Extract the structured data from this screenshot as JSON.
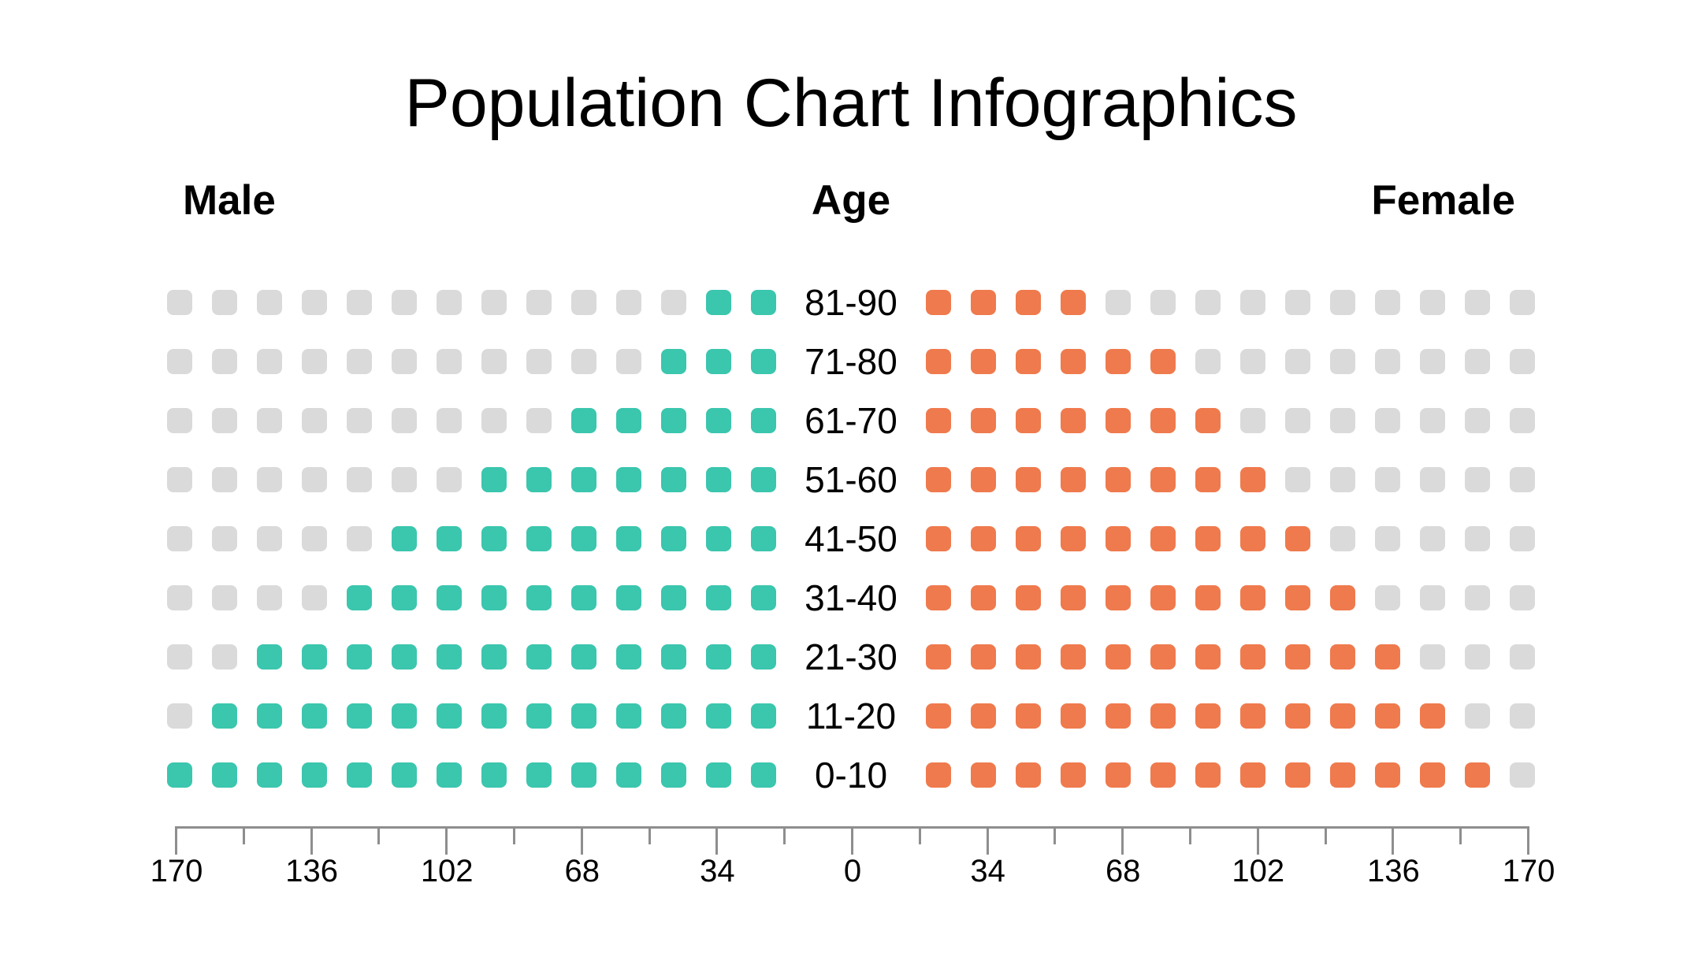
{
  "title": "Population Chart Infographics",
  "headers": {
    "male": "Male",
    "age": "Age",
    "female": "Female"
  },
  "colors": {
    "male_filled": "#3BC6AE",
    "female_filled": "#EF7A4D",
    "empty_square": "#DADADA",
    "axis": "#8E8E8E",
    "text": "#000000"
  },
  "chart_data": {
    "type": "pictogram-population-pyramid",
    "title": "Population Chart Infographics",
    "categories": [
      "81-90",
      "71-80",
      "61-70",
      "51-60",
      "41-50",
      "31-40",
      "21-30",
      "11-20",
      "0-10"
    ],
    "total_squares_per_side": 14,
    "series": [
      {
        "name": "Male",
        "side": "left",
        "color": "#3BC6AE",
        "filled_squares": [
          2,
          3,
          5,
          7,
          9,
          10,
          12,
          13,
          14
        ]
      },
      {
        "name": "Female",
        "side": "right",
        "color": "#EF7A4D",
        "filled_squares": [
          4,
          6,
          7,
          8,
          9,
          10,
          11,
          12,
          13
        ]
      }
    ],
    "axis": {
      "tick_labels": [
        "170",
        "136",
        "102",
        "68",
        "34",
        "0",
        "34",
        "68",
        "102",
        "136",
        "170"
      ],
      "major_tick_step": 34,
      "minor_ticks_between_majors": 1,
      "range_each_side": [
        0,
        170
      ]
    },
    "grid": false,
    "legend_position": "none"
  }
}
